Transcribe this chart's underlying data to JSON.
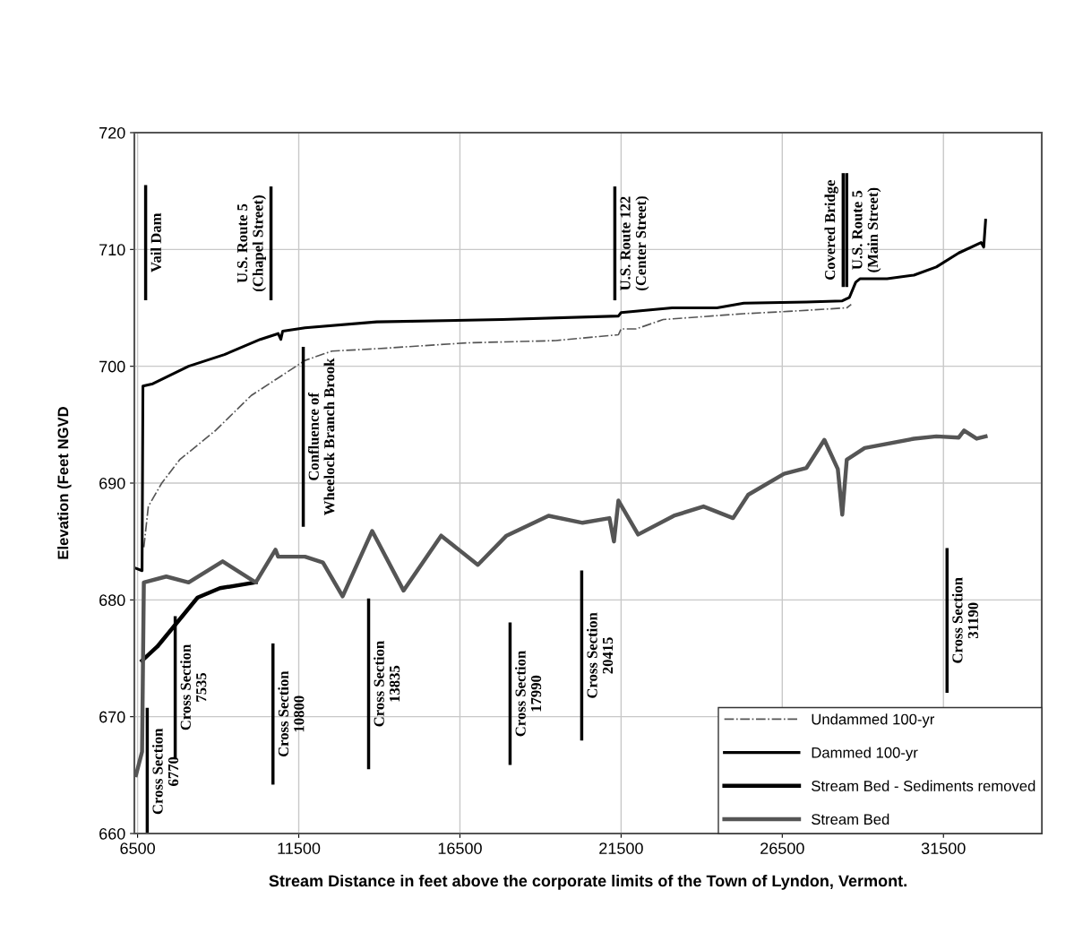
{
  "chart_data": {
    "type": "line",
    "xlabel": "Stream Distance in feet above the corporate limits of the Town of Lyndon, Vermont.",
    "ylabel": "Elevation (Feet NGVD",
    "xlim": [
      6400,
      34550
    ],
    "xticks": [
      6500,
      11500,
      16500,
      21500,
      26500,
      31500
    ],
    "ylim": [
      660,
      720
    ],
    "yticks": [
      660,
      670,
      680,
      690,
      700,
      710,
      720
    ],
    "grid": true,
    "legend": "bottom right",
    "marker": "none",
    "series": [
      {
        "name": "Undammed 100-yr",
        "color": "#555555",
        "line_style": "dashdot",
        "x": [
          6694,
          6833,
          7250,
          7805,
          8917,
          10028,
          10861,
          11694,
          12528,
          13917,
          16695,
          19473,
          21417,
          21500,
          21972,
          22806,
          25306,
          26695,
          28501,
          28640
        ],
        "values": [
          684.5,
          688,
          690,
          692,
          694.5,
          697.5,
          699,
          700.5,
          701.3,
          701.5,
          702.0,
          702.2,
          702.7,
          703.2,
          703.2,
          704.0,
          704.5,
          704.7,
          705.0,
          705.3
        ]
      },
      {
        "name": "Dammed 100-yr",
        "color": "#000000",
        "line_style": "solid",
        "x": [
          6450,
          6639,
          6666,
          6972,
          8083,
          9194,
          10306,
          10861,
          10944,
          11000,
          11694,
          13917,
          17806,
          21417,
          21500,
          23083,
          24472,
          25306,
          27251,
          28362,
          28584,
          28779,
          28917,
          29750,
          30585,
          31280,
          31975,
          32670,
          32750,
          32808
        ],
        "values": [
          682.7,
          682.5,
          698.3,
          698.5,
          700.0,
          701.0,
          702.3,
          702.8,
          702.3,
          703.0,
          703.3,
          703.8,
          704.0,
          704.3,
          704.6,
          705.0,
          705.0,
          705.4,
          705.5,
          705.6,
          705.9,
          707.2,
          707.5,
          707.5,
          707.8,
          708.5,
          709.7,
          710.6,
          710.2,
          712.5
        ]
      },
      {
        "name": "Stream Bed - Sediments removed",
        "color": "#000000",
        "line_style": "solid",
        "x": [
          6639,
          7111,
          8361,
          9055,
          10166
        ],
        "values": [
          674.8,
          676.0,
          680.2,
          681.0,
          681.5
        ]
      },
      {
        "name": "Stream Bed",
        "color": "#555555",
        "line_style": "solid",
        "x": [
          6450,
          6639,
          6694,
          7389,
          8083,
          9139,
          10166,
          10778,
          10861,
          11694,
          12250,
          12861,
          13778,
          14750,
          15917,
          17056,
          17945,
          19250,
          20306,
          21139,
          21278,
          21417,
          22028,
          23139,
          24056,
          24973,
          25445,
          26556,
          27251,
          27806,
          28223,
          28362,
          28501,
          29056,
          30585,
          31280,
          31975,
          32140,
          32530,
          32808
        ],
        "values": [
          665,
          667,
          681.5,
          682,
          681.5,
          683.3,
          681.5,
          684.3,
          683.7,
          683.7,
          683.2,
          680.3,
          685.9,
          680.8,
          685.5,
          683,
          685.5,
          687.2,
          686.6,
          687,
          685,
          688.5,
          685.6,
          687.2,
          688.0,
          687.0,
          689,
          690.8,
          691.3,
          693.7,
          691.2,
          687.3,
          692,
          693,
          693.8,
          694.0,
          693.9,
          694.5,
          693.8,
          694.0
        ]
      }
    ],
    "ref_lines": [
      {
        "axis": "x",
        "value": 6750,
        "label": "Vail Dam",
        "color": "#000000"
      },
      {
        "axis": "x",
        "value": 10639,
        "label": "U.S. Route 5\n(Chapel Street)",
        "color": "#000000"
      },
      {
        "axis": "x",
        "value": 11640,
        "label": "Confluence of\nWheelock Branch Brook",
        "color": "#000000"
      },
      {
        "axis": "x",
        "value": 21306,
        "label": "U.S. Route 122\n(Center Street)",
        "color": "#000000"
      },
      {
        "axis": "x",
        "value": 28390,
        "label": "Covered Bridge",
        "color": "#000000"
      },
      {
        "axis": "x",
        "value": 28500,
        "label": "U.S. Route 5\n(Main Street)",
        "color": "#000000"
      },
      {
        "axis": "x",
        "value": 6800,
        "label": "Cross Section\n6770",
        "color": "#000000"
      },
      {
        "axis": "x",
        "value": 7667,
        "label": "Cross Section\n7535",
        "color": "#000000"
      },
      {
        "axis": "x",
        "value": 10700,
        "label": "Cross Section\n10800",
        "color": "#000000"
      },
      {
        "axis": "x",
        "value": 13667,
        "label": "Cross Section\n13835",
        "color": "#000000"
      },
      {
        "axis": "x",
        "value": 18056,
        "label": "Cross Section\n17990",
        "color": "#000000"
      },
      {
        "axis": "x",
        "value": 20278,
        "label": "Cross Section\n20415",
        "color": "#000000"
      },
      {
        "axis": "x",
        "value": 31612,
        "label": "Cross Section\n31190",
        "color": "#000000"
      }
    ]
  }
}
